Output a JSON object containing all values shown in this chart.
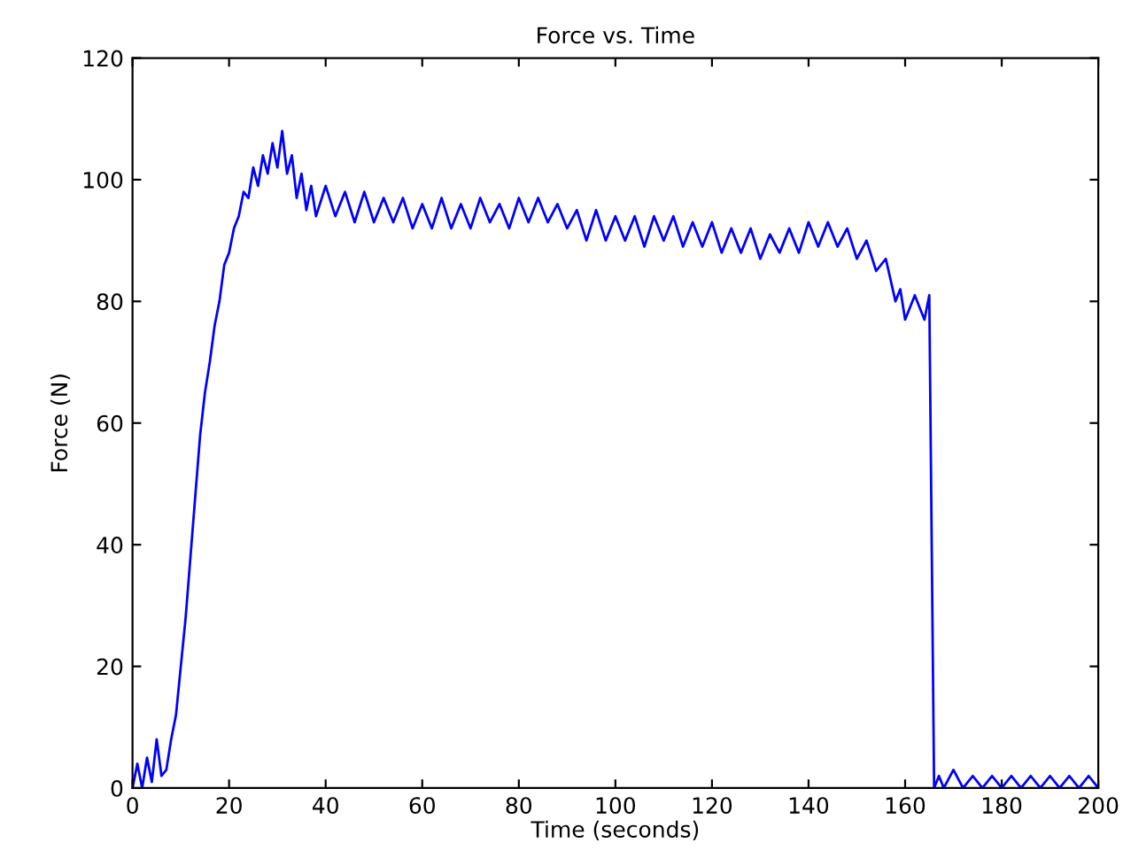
{
  "chart_data": {
    "type": "line",
    "title": "Force vs. Time",
    "xlabel": "Time (seconds)",
    "ylabel": "Force (N)",
    "xlim": [
      0,
      200
    ],
    "ylim": [
      0,
      120
    ],
    "xticks": [
      0,
      20,
      40,
      60,
      80,
      100,
      120,
      140,
      160,
      180,
      200
    ],
    "yticks": [
      0,
      20,
      40,
      60,
      80,
      100,
      120
    ],
    "grid": false,
    "legend": false,
    "marker": "none",
    "line_style": "solid",
    "series": [
      {
        "color": "#0000ff",
        "x": [
          0,
          1,
          2,
          3,
          4,
          5,
          6,
          7,
          8,
          9,
          10,
          11,
          12,
          13,
          14,
          15,
          16,
          17,
          18,
          19,
          20,
          21,
          22,
          23,
          24,
          25,
          26,
          27,
          28,
          29,
          30,
          31,
          32,
          33,
          34,
          35,
          36,
          37,
          38,
          40,
          42,
          44,
          46,
          48,
          50,
          52,
          54,
          56,
          58,
          60,
          62,
          64,
          66,
          68,
          70,
          72,
          74,
          76,
          78,
          80,
          82,
          84,
          86,
          88,
          90,
          92,
          94,
          96,
          98,
          100,
          102,
          104,
          106,
          108,
          110,
          112,
          114,
          116,
          118,
          120,
          122,
          124,
          126,
          128,
          130,
          132,
          134,
          136,
          138,
          140,
          142,
          144,
          146,
          148,
          150,
          152,
          154,
          156,
          158,
          159,
          160,
          162,
          164,
          165,
          166,
          167,
          168,
          170,
          172,
          174,
          176,
          178,
          180,
          182,
          184,
          186,
          188,
          190,
          192,
          194,
          196,
          198,
          200
        ],
        "values": [
          0,
          4,
          0,
          5,
          1,
          8,
          2,
          3,
          8,
          12,
          20,
          28,
          38,
          48,
          58,
          65,
          70,
          76,
          80,
          86,
          88,
          92,
          94,
          98,
          97,
          102,
          99,
          104,
          101,
          106,
          102,
          108,
          101,
          104,
          97,
          101,
          95,
          99,
          94,
          99,
          94,
          98,
          93,
          98,
          93,
          97,
          93,
          97,
          92,
          96,
          92,
          97,
          92,
          96,
          92,
          97,
          93,
          96,
          92,
          97,
          93,
          97,
          93,
          96,
          92,
          95,
          90,
          95,
          90,
          94,
          90,
          94,
          89,
          94,
          90,
          94,
          89,
          93,
          89,
          93,
          88,
          92,
          88,
          92,
          87,
          91,
          88,
          92,
          88,
          93,
          89,
          93,
          89,
          92,
          87,
          90,
          85,
          87,
          80,
          82,
          77,
          81,
          77,
          81,
          0,
          2,
          0,
          3,
          0,
          2,
          0,
          2,
          0,
          2,
          0,
          2,
          0,
          2,
          0,
          2,
          0,
          2,
          0
        ]
      }
    ]
  }
}
